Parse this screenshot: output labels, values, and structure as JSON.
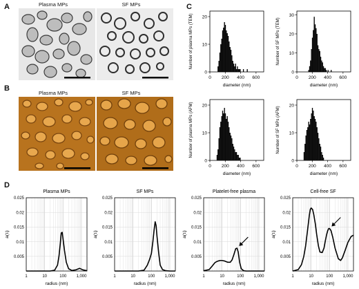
{
  "figure": {
    "panel_labels": {
      "A": "A",
      "B": "B",
      "C": "C",
      "D": "D"
    },
    "panel_a": {
      "titles": [
        "Plasma MPs",
        "SF MPs"
      ]
    },
    "panel_b": {
      "titles": [
        "Plasma MPs",
        "SF MPs"
      ]
    }
  },
  "chart_data": [
    {
      "type": "bar",
      "id": "hist-plasma-tem",
      "xlabel": "diameter (nm)",
      "ylabel": "Number of plasma MPs (TEM)",
      "xlim": [
        0,
        700
      ],
      "ylim": [
        0,
        22
      ],
      "xticks": [
        "0",
        "200",
        "400",
        "600"
      ],
      "yticks": [
        "0",
        "10",
        "20"
      ],
      "bin_width": 12,
      "x": [
        100,
        112,
        124,
        136,
        148,
        160,
        172,
        184,
        196,
        208,
        220,
        232,
        244,
        256,
        268,
        280,
        292,
        304,
        316,
        328,
        340,
        352,
        364,
        376,
        388,
        430,
        480
      ],
      "values": [
        2,
        4,
        7,
        10,
        12,
        15,
        16,
        18,
        17,
        15,
        14,
        13,
        11,
        9,
        8,
        6,
        4,
        3,
        2,
        3,
        1,
        2,
        1,
        1,
        1,
        1,
        1
      ]
    },
    {
      "type": "bar",
      "id": "hist-sf-tem",
      "xlabel": "diameter (nm)",
      "ylabel": "Number of SF MPs (TEM)",
      "xlim": [
        0,
        700
      ],
      "ylim": [
        0,
        32
      ],
      "xticks": [
        "0",
        "200",
        "400",
        "600"
      ],
      "yticks": [
        "0",
        "10",
        "20",
        "30"
      ],
      "bin_width": 12,
      "x": [
        148,
        160,
        172,
        184,
        196,
        208,
        220,
        232,
        244,
        256,
        268,
        280,
        292,
        304,
        316,
        328,
        340,
        352,
        364,
        376,
        400,
        440
      ],
      "values": [
        1,
        3,
        6,
        12,
        18,
        22,
        29,
        25,
        23,
        20,
        14,
        12,
        11,
        8,
        6,
        5,
        3,
        2,
        2,
        1,
        1,
        1
      ]
    },
    {
      "type": "bar",
      "id": "hist-plasma-afm",
      "xlabel": "diameter (nm)",
      "ylabel": "Number of plasma MPs (AFM)",
      "xlim": [
        0,
        700
      ],
      "ylim": [
        0,
        22
      ],
      "xticks": [
        "0",
        "200",
        "400",
        "600"
      ],
      "yticks": [
        "0",
        "10",
        "20"
      ],
      "bin_width": 12,
      "x": [
        88,
        100,
        112,
        124,
        136,
        148,
        160,
        172,
        184,
        196,
        208,
        220,
        232,
        244,
        256,
        268,
        280,
        292,
        304,
        316,
        328,
        340,
        352,
        364,
        376,
        388
      ],
      "values": [
        2,
        4,
        8,
        12,
        14,
        16,
        18,
        17,
        19,
        17,
        15,
        16,
        14,
        12,
        10,
        9,
        8,
        6,
        5,
        4,
        3,
        3,
        2,
        2,
        1,
        1
      ]
    },
    {
      "type": "bar",
      "id": "hist-sf-afm",
      "xlabel": "diameter (nm)",
      "ylabel": "Number of SF MPs (AFM)",
      "xlim": [
        0,
        700
      ],
      "ylim": [
        0,
        22
      ],
      "xticks": [
        "0",
        "200",
        "400",
        "600"
      ],
      "yticks": [
        "0",
        "10",
        "20"
      ],
      "bin_width": 12,
      "x": [
        88,
        100,
        112,
        124,
        136,
        148,
        160,
        172,
        184,
        196,
        208,
        220,
        232,
        244,
        256,
        268,
        280,
        292,
        304,
        316,
        328,
        340
      ],
      "values": [
        3,
        6,
        9,
        11,
        12,
        14,
        13,
        15,
        17,
        19,
        18,
        16,
        15,
        14,
        12,
        10,
        8,
        6,
        5,
        3,
        2,
        1
      ]
    },
    {
      "type": "line",
      "id": "dls-plasma-mps",
      "title": "Plasma MPs",
      "xlabel": "radius (nm)",
      "ylabel": "a(τᵢ)",
      "xscale": "log",
      "xlim": [
        1,
        2000
      ],
      "ylim": [
        0,
        0.025
      ],
      "xticks": [
        "1",
        "10",
        "100",
        "1,000"
      ],
      "yticks": [
        "0.005",
        "0.01",
        "0.015",
        "0.02",
        "0.025"
      ],
      "x": [
        1,
        3,
        10,
        20,
        35,
        50,
        60,
        70,
        80,
        90,
        100,
        120,
        150,
        200,
        300,
        500,
        800,
        1200,
        2000
      ],
      "y": [
        0,
        0,
        0,
        0,
        0.0003,
        0.002,
        0.005,
        0.009,
        0.013,
        0.0132,
        0.011,
        0.007,
        0.003,
        0.0008,
        0.0002,
        0.0004,
        0.0009,
        0.0004,
        0.0001
      ]
    },
    {
      "type": "line",
      "id": "dls-sf-mps",
      "title": "SF MPs",
      "xlabel": "radius (nm)",
      "ylabel": "a(τᵢ)",
      "xscale": "log",
      "xlim": [
        1,
        2000
      ],
      "ylim": [
        0,
        0.025
      ],
      "xticks": [
        "1",
        "10",
        "100",
        "1,000"
      ],
      "yticks": [
        "0.005",
        "0.01",
        "0.015",
        "0.02",
        "0.025"
      ],
      "x": [
        1,
        5,
        20,
        40,
        60,
        80,
        100,
        120,
        140,
        160,
        180,
        200,
        250,
        300,
        400,
        600,
        1000,
        2000
      ],
      "y": [
        0,
        0,
        0,
        0.0003,
        0.002,
        0.004,
        0.006,
        0.01,
        0.014,
        0.0168,
        0.0155,
        0.012,
        0.006,
        0.002,
        0.0005,
        0.0001,
        0,
        0
      ]
    },
    {
      "type": "line",
      "id": "dls-platelet-free-plasma",
      "title": "Platelet-free plasma",
      "xlabel": "radius (nm)",
      "ylabel": "a(τᵢ)",
      "xscale": "log",
      "xlim": [
        1,
        2000
      ],
      "ylim": [
        0,
        0.025
      ],
      "xticks": [
        "1",
        "10",
        "100",
        "1,000"
      ],
      "yticks": [
        "0.005",
        "0.01",
        "0.015",
        "0.02",
        "0.025"
      ],
      "x": [
        1,
        2,
        3,
        4,
        5,
        6,
        8,
        10,
        14,
        20,
        28,
        35,
        45,
        55,
        65,
        75,
        90,
        110,
        150,
        200,
        300,
        500,
        1000,
        2000
      ],
      "y": [
        0.0001,
        0.0005,
        0.0018,
        0.0028,
        0.0032,
        0.0034,
        0.0036,
        0.0036,
        0.0034,
        0.003,
        0.003,
        0.0038,
        0.0058,
        0.0076,
        0.0078,
        0.0065,
        0.003,
        0.0008,
        0.0001,
        0,
        0,
        0,
        0,
        0
      ]
    },
    {
      "type": "line",
      "id": "dls-cell-free-sf",
      "title": "Cell-free SF",
      "xlabel": "radius (nm)",
      "ylabel": "a(τᵢ)",
      "xscale": "log",
      "xlim": [
        1,
        2000
      ],
      "ylim": [
        0,
        0.025
      ],
      "xticks": [
        "1",
        "10",
        "100",
        "1,000"
      ],
      "yticks": [
        "0.005",
        "0.01",
        "0.015",
        "0.02",
        "0.025"
      ],
      "x": [
        1,
        2,
        3,
        4,
        5,
        6,
        7,
        8,
        9,
        10,
        12,
        14,
        17,
        20,
        25,
        30,
        40,
        50,
        60,
        70,
        80,
        90,
        100,
        120,
        150,
        200,
        300,
        400,
        500,
        700,
        1000,
        1500,
        2000
      ],
      "y": [
        0,
        0.0005,
        0.0022,
        0.005,
        0.0085,
        0.0125,
        0.016,
        0.019,
        0.021,
        0.0215,
        0.021,
        0.0192,
        0.016,
        0.0125,
        0.0085,
        0.0065,
        0.0063,
        0.0078,
        0.0105,
        0.0125,
        0.0138,
        0.0145,
        0.0145,
        0.0138,
        0.0115,
        0.0078,
        0.0042,
        0.0036,
        0.0045,
        0.007,
        0.0098,
        0.0118,
        0.0122
      ]
    }
  ]
}
